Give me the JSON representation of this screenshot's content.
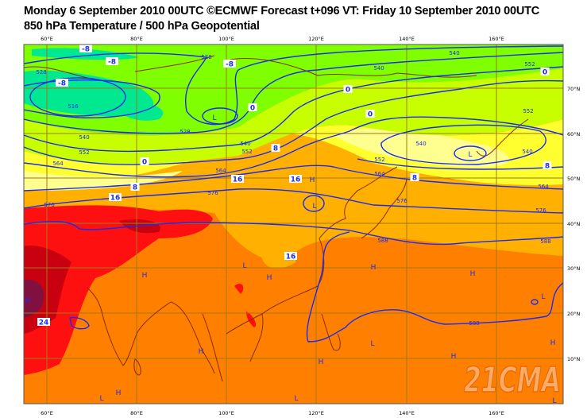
{
  "title": {
    "line1": "Monday 6 September 2010 00UTC ©ECMWF Forecast t+096 VT: Friday 10 September 2010 00UTC",
    "line2": "850 hPa Temperature / 500 hPa Geopotential"
  },
  "axes": {
    "lon_labels": [
      "60°E",
      "80°E",
      "100°E",
      "120°E",
      "140°E",
      "160°E"
    ],
    "lat_labels": [
      "70°N",
      "60°N",
      "50°N",
      "40°N",
      "30°N",
      "20°N",
      "10°N"
    ]
  },
  "map": {
    "temperature_labels": [
      "-8",
      "-8",
      "-8",
      "-8",
      "0",
      "0",
      "0",
      "0",
      "0",
      "8",
      "8",
      "8",
      "8",
      "16",
      "16",
      "16",
      "16",
      "24"
    ],
    "geopotential_labels": [
      "528",
      "516",
      "528",
      "528",
      "540",
      "552",
      "564",
      "576",
      "564",
      "576",
      "540",
      "552",
      "540",
      "540",
      "552",
      "552",
      "540",
      "540",
      "552",
      "564",
      "564",
      "576",
      "576",
      "588",
      "588",
      "588"
    ],
    "pressure_centers": [
      "L",
      "L",
      "L",
      "H",
      "H",
      "H",
      "L",
      "H",
      "H",
      "H",
      "L",
      "H",
      "H",
      "L",
      "H",
      "L",
      "H",
      "H",
      "L",
      "L"
    ],
    "watermark": "21CMA"
  },
  "colors": {
    "geopotential_contour": "#1a2cf0",
    "coastline": "#8b2a0a",
    "grid": "#a07a1a",
    "temp_cold": "#00e890",
    "temp_cool": "#80ff00",
    "temp_mild": "#c8ff00",
    "temp_yellow": "#ffff30",
    "temp_lightyellow": "#ffff90",
    "temp_warm": "#ffb000",
    "temp_hot": "#ff7f00",
    "temp_veryhot": "#ff1010",
    "temp_extreme": "#c80010",
    "temp_max": "#801040"
  }
}
